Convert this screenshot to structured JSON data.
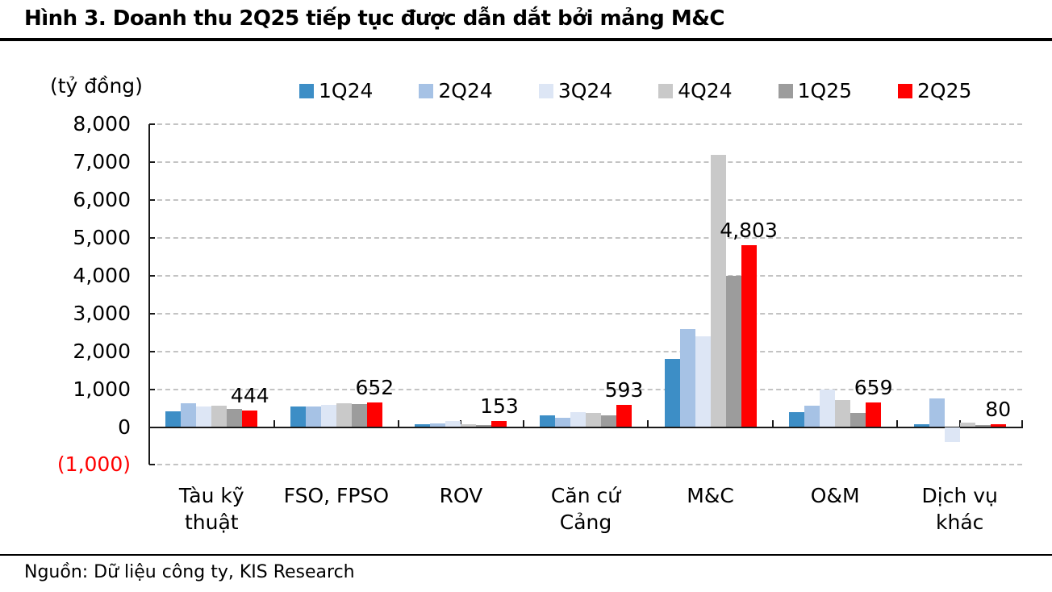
{
  "title": "Hình 3. Doanh thu 2Q25 tiếp tục được dẫn dắt bởi mảng M&C",
  "unit_label": "(tỷ đồng)",
  "source": "Nguồn: Dữ liệu công ty, KIS Research",
  "colors": {
    "accent_red": "#ff0000",
    "grid": "#c3c3c3",
    "axis": "#1a1a1a",
    "negative_axis_label": "#ff0000"
  },
  "chart_data": {
    "type": "bar",
    "title": "Hình 3. Doanh thu 2Q25 tiếp tục được dẫn dắt bởi mảng M&C",
    "ylabel": "(tỷ đồng)",
    "xlabel": "",
    "ylim": [
      -1000,
      8000
    ],
    "ytick_interval": 1000,
    "ytick_labels": [
      "8,000",
      "7,000",
      "6,000",
      "5,000",
      "4,000",
      "3,000",
      "2,000",
      "1,000",
      "0",
      "(1,000)"
    ],
    "grid": "horizontal-dashed",
    "legend_position": "top",
    "categories": [
      "Tàu kỹ thuật",
      "FSO, FPSO",
      "ROV",
      "Căn cứ Cảng",
      "M&C",
      "O&M",
      "Dịch vụ khác"
    ],
    "category_display": [
      "Tàu kỹ\nthuật",
      "FSO, FPSO",
      "ROV",
      "Căn cứ\nCảng",
      "M&C",
      "O&M",
      "Dịch vụ\nkhác"
    ],
    "series": [
      {
        "name": "1Q24",
        "color": "#3d8ec6",
        "values": [
          410,
          535,
          80,
          300,
          1800,
          400,
          80
        ]
      },
      {
        "name": "2Q24",
        "color": "#a6c2e5",
        "values": [
          630,
          540,
          100,
          250,
          2600,
          560,
          750
        ]
      },
      {
        "name": "3Q24",
        "color": "#dde6f5",
        "values": [
          550,
          590,
          160,
          400,
          2400,
          1000,
          -400
        ]
      },
      {
        "name": "4Q24",
        "color": "#c9c9c9",
        "values": [
          560,
          625,
          75,
          380,
          7200,
          720,
          110
        ]
      },
      {
        "name": "1Q25",
        "color": "#9c9c9c",
        "values": [
          490,
          615,
          50,
          310,
          4000,
          380,
          45
        ]
      },
      {
        "name": "2Q25",
        "color": "#ff0000",
        "values": [
          444,
          652,
          153,
          593,
          4803,
          659,
          80
        ]
      }
    ],
    "data_labels": {
      "series": "2Q25",
      "values": [
        "444",
        "652",
        "153",
        "593",
        "4,803",
        "659",
        "80"
      ]
    }
  }
}
